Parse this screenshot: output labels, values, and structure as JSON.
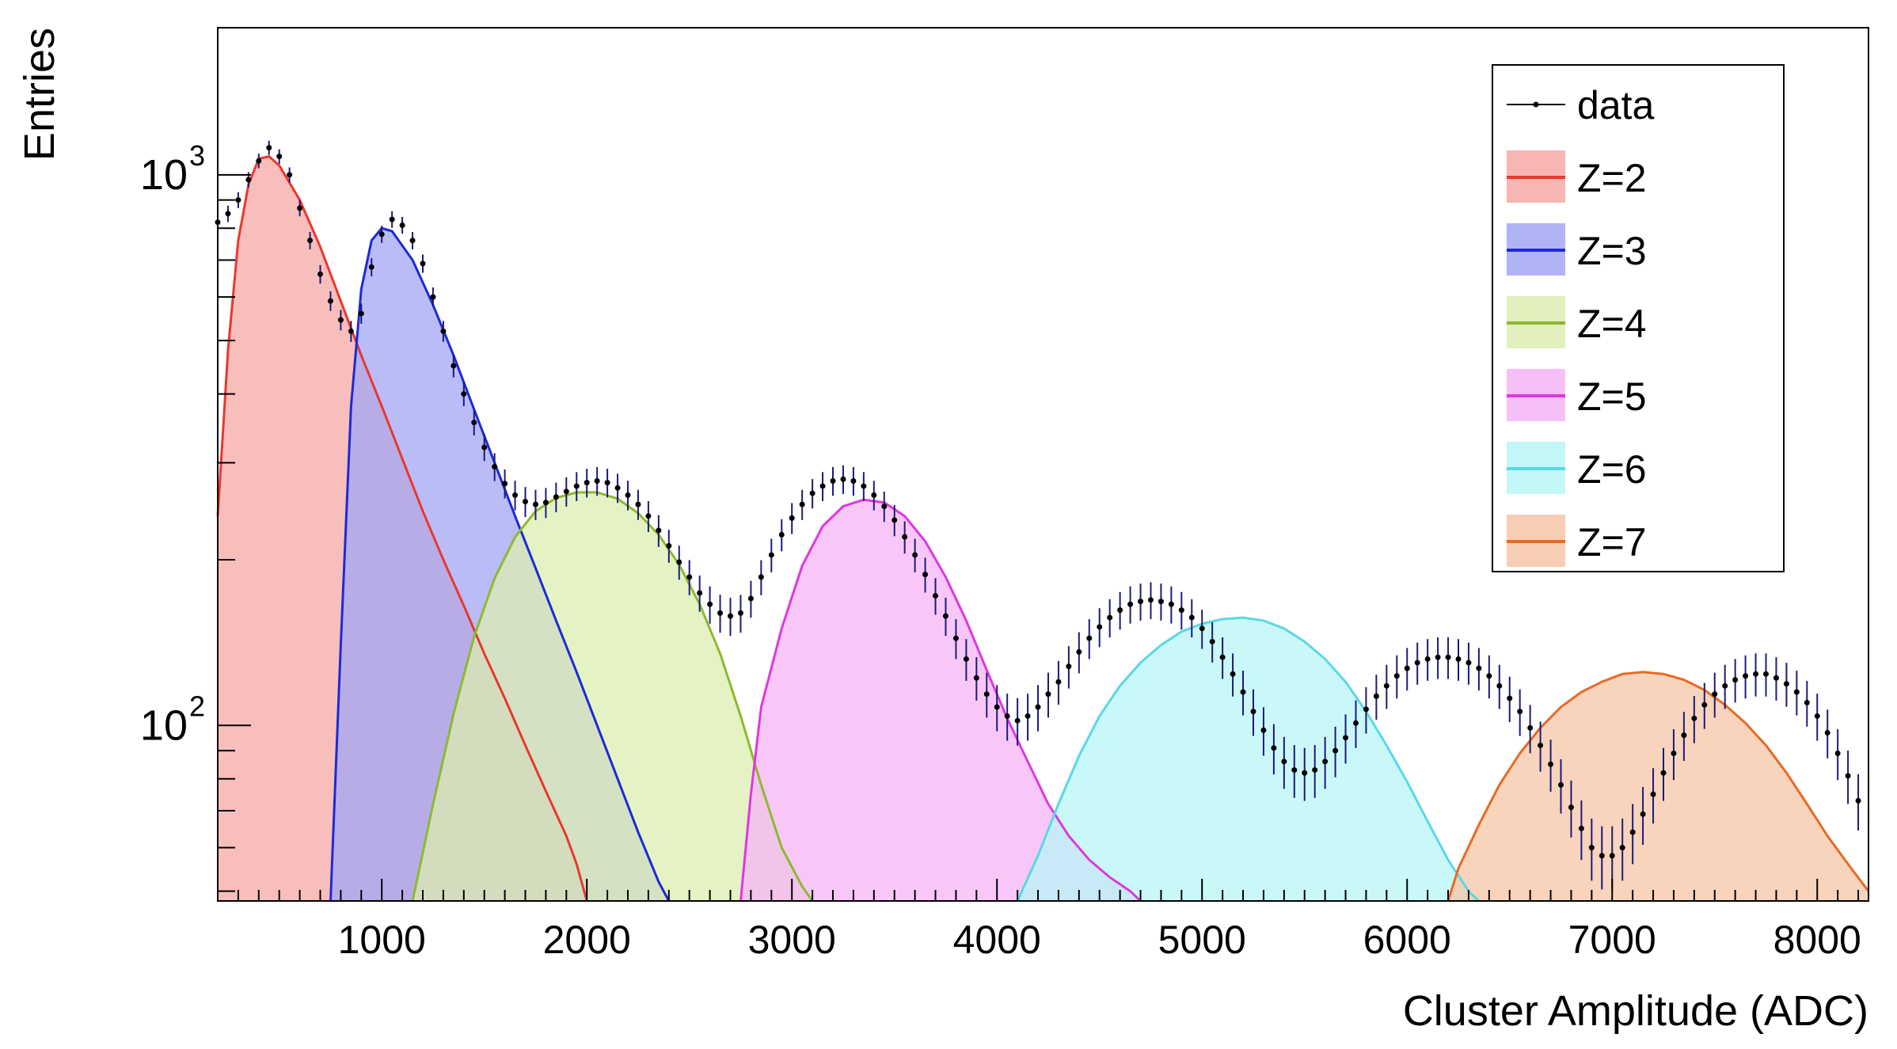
{
  "chart_data": {
    "type": "area",
    "title": "",
    "xlabel": "Cluster Amplitude (ADC)",
    "ylabel": "Entries",
    "yscale": "log",
    "xlim": [
      200,
      8250
    ],
    "ylim": [
      48,
      1850
    ],
    "x_ticks": [
      1000,
      2000,
      3000,
      4000,
      5000,
      6000,
      7000,
      8000
    ],
    "x_tick_labels": [
      "1000",
      "2000",
      "3000",
      "4000",
      "5000",
      "6000",
      "7000",
      "8000"
    ],
    "y_tick_labels": [
      {
        "value": 100,
        "base": "10",
        "exp": "2"
      },
      {
        "value": 1000,
        "base": "10",
        "exp": "3"
      }
    ],
    "grid": false,
    "legend_position": "top-right",
    "data_series": {
      "name": "data",
      "color": "#000000",
      "note_marker": "points with error bars",
      "points": [
        [
          200,
          820
        ],
        [
          250,
          850
        ],
        [
          300,
          900
        ],
        [
          350,
          980
        ],
        [
          400,
          1060
        ],
        [
          450,
          1120
        ],
        [
          500,
          1080
        ],
        [
          550,
          1000
        ],
        [
          600,
          870
        ],
        [
          650,
          760
        ],
        [
          700,
          660
        ],
        [
          750,
          590
        ],
        [
          800,
          545
        ],
        [
          850,
          520
        ],
        [
          900,
          560
        ],
        [
          950,
          680
        ],
        [
          1000,
          780
        ],
        [
          1050,
          830
        ],
        [
          1100,
          810
        ],
        [
          1150,
          760
        ],
        [
          1200,
          690
        ],
        [
          1250,
          600
        ],
        [
          1300,
          520
        ],
        [
          1350,
          450
        ],
        [
          1400,
          400
        ],
        [
          1450,
          355
        ],
        [
          1500,
          320
        ],
        [
          1550,
          295
        ],
        [
          1600,
          275
        ],
        [
          1650,
          262
        ],
        [
          1700,
          255
        ],
        [
          1750,
          252
        ],
        [
          1800,
          254
        ],
        [
          1850,
          260
        ],
        [
          1900,
          266
        ],
        [
          1950,
          272
        ],
        [
          2000,
          276
        ],
        [
          2050,
          278
        ],
        [
          2100,
          276
        ],
        [
          2150,
          270
        ],
        [
          2200,
          262
        ],
        [
          2250,
          252
        ],
        [
          2300,
          240
        ],
        [
          2350,
          226
        ],
        [
          2400,
          212
        ],
        [
          2450,
          198
        ],
        [
          2500,
          186
        ],
        [
          2550,
          174
        ],
        [
          2600,
          166
        ],
        [
          2650,
          160
        ],
        [
          2700,
          158
        ],
        [
          2750,
          160
        ],
        [
          2800,
          170
        ],
        [
          2850,
          186
        ],
        [
          2900,
          204
        ],
        [
          2950,
          222
        ],
        [
          3000,
          238
        ],
        [
          3050,
          252
        ],
        [
          3100,
          264
        ],
        [
          3150,
          272
        ],
        [
          3200,
          278
        ],
        [
          3250,
          280
        ],
        [
          3300,
          278
        ],
        [
          3350,
          272
        ],
        [
          3400,
          262
        ],
        [
          3450,
          250
        ],
        [
          3500,
          236
        ],
        [
          3550,
          220
        ],
        [
          3600,
          204
        ],
        [
          3650,
          188
        ],
        [
          3700,
          172
        ],
        [
          3750,
          158
        ],
        [
          3800,
          144
        ],
        [
          3850,
          132
        ],
        [
          3900,
          122
        ],
        [
          3950,
          114
        ],
        [
          4000,
          108
        ],
        [
          4050,
          104
        ],
        [
          4100,
          102
        ],
        [
          4150,
          104
        ],
        [
          4200,
          108
        ],
        [
          4250,
          114
        ],
        [
          4300,
          120
        ],
        [
          4350,
          128
        ],
        [
          4400,
          136
        ],
        [
          4450,
          144
        ],
        [
          4500,
          151
        ],
        [
          4550,
          157
        ],
        [
          4600,
          162
        ],
        [
          4650,
          166
        ],
        [
          4700,
          168
        ],
        [
          4750,
          169
        ],
        [
          4800,
          168
        ],
        [
          4850,
          166
        ],
        [
          4900,
          162
        ],
        [
          4950,
          157
        ],
        [
          5000,
          150
        ],
        [
          5050,
          142
        ],
        [
          5100,
          133
        ],
        [
          5150,
          124
        ],
        [
          5200,
          115
        ],
        [
          5250,
          106
        ],
        [
          5300,
          98
        ],
        [
          5350,
          91
        ],
        [
          5400,
          86
        ],
        [
          5450,
          83
        ],
        [
          5500,
          82
        ],
        [
          5550,
          83
        ],
        [
          5600,
          86
        ],
        [
          5650,
          90
        ],
        [
          5700,
          95
        ],
        [
          5750,
          101
        ],
        [
          5800,
          107
        ],
        [
          5850,
          113
        ],
        [
          5900,
          118
        ],
        [
          5950,
          123
        ],
        [
          6000,
          127
        ],
        [
          6050,
          130
        ],
        [
          6100,
          132
        ],
        [
          6150,
          133
        ],
        [
          6200,
          133
        ],
        [
          6250,
          132
        ],
        [
          6300,
          130
        ],
        [
          6350,
          127
        ],
        [
          6400,
          123
        ],
        [
          6450,
          118
        ],
        [
          6500,
          112
        ],
        [
          6550,
          106
        ],
        [
          6600,
          99
        ],
        [
          6650,
          92
        ],
        [
          6700,
          85
        ],
        [
          6750,
          78
        ],
        [
          6800,
          71
        ],
        [
          6850,
          65
        ],
        [
          6900,
          60
        ],
        [
          6950,
          58
        ],
        [
          7000,
          58
        ],
        [
          7050,
          60
        ],
        [
          7100,
          64
        ],
        [
          7150,
          69
        ],
        [
          7200,
          75
        ],
        [
          7250,
          82
        ],
        [
          7300,
          89
        ],
        [
          7350,
          96
        ],
        [
          7400,
          103
        ],
        [
          7450,
          109
        ],
        [
          7500,
          114
        ],
        [
          7550,
          118
        ],
        [
          7600,
          121
        ],
        [
          7650,
          123
        ],
        [
          7700,
          124
        ],
        [
          7750,
          124
        ],
        [
          7800,
          122
        ],
        [
          7850,
          119
        ],
        [
          7900,
          115
        ],
        [
          7950,
          110
        ],
        [
          8000,
          104
        ],
        [
          8050,
          97
        ],
        [
          8100,
          89
        ],
        [
          8150,
          81
        ],
        [
          8200,
          73
        ]
      ]
    },
    "series": [
      {
        "name": "Z=2",
        "color": "#e8382d",
        "fill": "#f6a8a6",
        "peak_x": 420,
        "peak_y": 1090,
        "xmin": 200,
        "xmax": 1900,
        "points": [
          [
            200,
            240
          ],
          [
            250,
            480
          ],
          [
            300,
            760
          ],
          [
            350,
            960
          ],
          [
            400,
            1070
          ],
          [
            450,
            1080
          ],
          [
            500,
            1040
          ],
          [
            600,
            900
          ],
          [
            700,
            740
          ],
          [
            800,
            590
          ],
          [
            900,
            470
          ],
          [
            1000,
            380
          ],
          [
            1100,
            305
          ],
          [
            1200,
            245
          ],
          [
            1300,
            200
          ],
          [
            1400,
            165
          ],
          [
            1500,
            135
          ],
          [
            1600,
            112
          ],
          [
            1700,
            92
          ],
          [
            1800,
            76
          ],
          [
            1900,
            63
          ],
          [
            1950,
            56
          ],
          [
            2000,
            48
          ]
        ]
      },
      {
        "name": "Z=3",
        "color": "#1c2ad8",
        "fill": "#a3a6f6",
        "peak_x": 1000,
        "peak_y": 800,
        "xmin": 750,
        "xmax": 2400,
        "points": [
          [
            750,
            48
          ],
          [
            800,
            140
          ],
          [
            850,
            380
          ],
          [
            900,
            620
          ],
          [
            950,
            760
          ],
          [
            1000,
            800
          ],
          [
            1050,
            790
          ],
          [
            1150,
            700
          ],
          [
            1250,
            580
          ],
          [
            1350,
            470
          ],
          [
            1450,
            375
          ],
          [
            1550,
            300
          ],
          [
            1650,
            240
          ],
          [
            1750,
            193
          ],
          [
            1850,
            155
          ],
          [
            1950,
            125
          ],
          [
            2050,
            100
          ],
          [
            2150,
            80
          ],
          [
            2250,
            64
          ],
          [
            2350,
            52
          ],
          [
            2400,
            48
          ]
        ]
      },
      {
        "name": "Z=4",
        "color": "#8db92f",
        "fill": "#dcedb0",
        "peak_x": 2050,
        "peak_y": 265,
        "xmin": 1100,
        "xmax": 3150,
        "points": [
          [
            1150,
            48
          ],
          [
            1250,
            72
          ],
          [
            1350,
            105
          ],
          [
            1450,
            145
          ],
          [
            1550,
            185
          ],
          [
            1650,
            220
          ],
          [
            1750,
            245
          ],
          [
            1850,
            259
          ],
          [
            1950,
            265
          ],
          [
            2050,
            265
          ],
          [
            2150,
            258
          ],
          [
            2250,
            243
          ],
          [
            2350,
            222
          ],
          [
            2450,
            196
          ],
          [
            2550,
            166
          ],
          [
            2650,
            135
          ],
          [
            2750,
            104
          ],
          [
            2850,
            78
          ],
          [
            2950,
            60
          ],
          [
            3050,
            51
          ],
          [
            3100,
            48
          ]
        ]
      },
      {
        "name": "Z=5",
        "color": "#dc39e0",
        "fill": "#f6b4f6",
        "peak_x": 3400,
        "peak_y": 255,
        "xmin": 2750,
        "xmax": 4700,
        "points": [
          [
            2750,
            48
          ],
          [
            2800,
            75
          ],
          [
            2850,
            108
          ],
          [
            2950,
            150
          ],
          [
            3050,
            195
          ],
          [
            3150,
            230
          ],
          [
            3250,
            250
          ],
          [
            3350,
            257
          ],
          [
            3450,
            254
          ],
          [
            3550,
            240
          ],
          [
            3650,
            216
          ],
          [
            3750,
            186
          ],
          [
            3850,
            155
          ],
          [
            3950,
            126
          ],
          [
            4050,
            103
          ],
          [
            4150,
            86
          ],
          [
            4250,
            72
          ],
          [
            4350,
            63
          ],
          [
            4450,
            57
          ],
          [
            4550,
            53
          ],
          [
            4650,
            50
          ],
          [
            4700,
            48
          ]
        ]
      },
      {
        "name": "Z=6",
        "color": "#59d8e6",
        "fill": "#b8f6f6",
        "peak_x": 5250,
        "peak_y": 157,
        "xmin": 4100,
        "xmax": 6350,
        "points": [
          [
            4100,
            48
          ],
          [
            4200,
            58
          ],
          [
            4300,
            72
          ],
          [
            4400,
            88
          ],
          [
            4500,
            104
          ],
          [
            4600,
            118
          ],
          [
            4700,
            130
          ],
          [
            4800,
            140
          ],
          [
            4900,
            148
          ],
          [
            5000,
            153
          ],
          [
            5100,
            156
          ],
          [
            5200,
            157
          ],
          [
            5300,
            155
          ],
          [
            5400,
            150
          ],
          [
            5500,
            142
          ],
          [
            5600,
            132
          ],
          [
            5700,
            120
          ],
          [
            5800,
            106
          ],
          [
            5900,
            92
          ],
          [
            6000,
            79
          ],
          [
            6100,
            67
          ],
          [
            6200,
            57
          ],
          [
            6300,
            50
          ],
          [
            6350,
            48
          ]
        ]
      },
      {
        "name": "Z=7",
        "color": "#e86a24",
        "fill": "#f6c6a6",
        "peak_x": 7150,
        "peak_y": 125,
        "xmin": 6200,
        "xmax": 8250,
        "points": [
          [
            6200,
            48
          ],
          [
            6250,
            55
          ],
          [
            6350,
            66
          ],
          [
            6450,
            78
          ],
          [
            6550,
            89
          ],
          [
            6650,
            99
          ],
          [
            6750,
            108
          ],
          [
            6850,
            115
          ],
          [
            6950,
            120
          ],
          [
            7050,
            124
          ],
          [
            7150,
            125
          ],
          [
            7250,
            124
          ],
          [
            7350,
            121
          ],
          [
            7450,
            116
          ],
          [
            7550,
            109
          ],
          [
            7650,
            101
          ],
          [
            7750,
            92
          ],
          [
            7850,
            82
          ],
          [
            7950,
            72
          ],
          [
            8050,
            63
          ],
          [
            8150,
            56
          ],
          [
            8250,
            50
          ]
        ]
      }
    ]
  }
}
